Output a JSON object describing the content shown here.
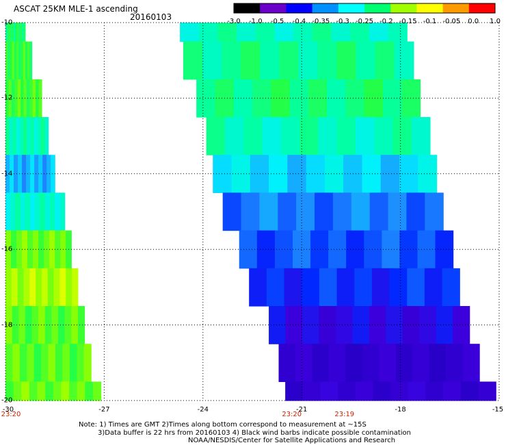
{
  "header": {
    "title": "ASCAT 25KM MLE-1 ascending",
    "date": "20160103"
  },
  "colorbar": {
    "labels": [
      "-3.0",
      "-1.0",
      "-0.5",
      "-0.4",
      "-0.35",
      "-0.3",
      "-0.25",
      "-0.2",
      "-0.15",
      "-0.1",
      "-0.05",
      "0.0",
      "1.0"
    ],
    "colors": [
      "#000000",
      "#6a00c8",
      "#0000ff",
      "#0090ff",
      "#00ffff",
      "#00ff70",
      "#a0ff00",
      "#ffff00",
      "#ff9900",
      "#ff0000"
    ]
  },
  "chart_data": {
    "type": "heatmap",
    "title": "ASCAT 25KM MLE-1 ascending",
    "xlabel": "",
    "ylabel": "",
    "xlim": [
      -30,
      -15
    ],
    "ylim": [
      -20,
      -10
    ],
    "x_ticks": [
      "-30",
      "-27",
      "-24",
      "-21",
      "-18",
      "-15"
    ],
    "y_ticks": [
      "-10",
      "-12",
      "-14",
      "-16",
      "-18",
      "-20"
    ],
    "grid": true,
    "colorbar_range": [
      -3.0,
      1.0
    ],
    "swaths": [
      {
        "name": "west",
        "time_label": "23:20",
        "time_lon": -30,
        "rows": [
          {
            "lat": -10.0,
            "lon_min": -30.0,
            "lon_max": -29.4,
            "value": -0.22
          },
          {
            "lat": -11.0,
            "lon_min": -30.0,
            "lon_max": -29.2,
            "value": -0.2
          },
          {
            "lat": -12.0,
            "lon_min": -30.0,
            "lon_max": -28.9,
            "value": -0.19
          },
          {
            "lat": -13.0,
            "lon_min": -30.0,
            "lon_max": -28.7,
            "value": -0.26
          },
          {
            "lat": -14.0,
            "lon_min": -30.0,
            "lon_max": -28.5,
            "value": -0.33
          },
          {
            "lat": -15.0,
            "lon_min": -30.0,
            "lon_max": -28.2,
            "value": -0.27
          },
          {
            "lat": -16.0,
            "lon_min": -30.0,
            "lon_max": -28.0,
            "value": -0.17
          },
          {
            "lat": -17.0,
            "lon_min": -30.0,
            "lon_max": -27.8,
            "value": -0.14
          },
          {
            "lat": -18.0,
            "lon_min": -30.0,
            "lon_max": -27.6,
            "value": -0.18
          },
          {
            "lat": -19.0,
            "lon_min": -30.0,
            "lon_max": -27.4,
            "value": -0.18
          },
          {
            "lat": -20.0,
            "lon_min": -30.0,
            "lon_max": -27.1,
            "value": -0.17
          }
        ]
      },
      {
        "name": "east",
        "time_label": "23:20",
        "time_lon": -21.3,
        "rows": [
          {
            "lat": -10.0,
            "lon_min": -24.7,
            "lon_max": -17.8,
            "value": -0.26
          },
          {
            "lat": -11.0,
            "lon_min": -24.6,
            "lon_max": -17.6,
            "value": -0.24
          },
          {
            "lat": -12.0,
            "lon_min": -24.2,
            "lon_max": -17.4,
            "value": -0.23
          },
          {
            "lat": -13.0,
            "lon_min": -23.9,
            "lon_max": -17.1,
            "value": -0.26
          },
          {
            "lat": -14.0,
            "lon_min": -23.7,
            "lon_max": -16.9,
            "value": -0.31
          },
          {
            "lat": -15.0,
            "lon_min": -23.4,
            "lon_max": -16.7,
            "value": -0.36
          },
          {
            "lat": -16.0,
            "lon_min": -22.9,
            "lon_max": -16.4,
            "value": -0.38
          },
          {
            "lat": -17.0,
            "lon_min": -22.6,
            "lon_max": -16.2,
            "value": -0.4
          },
          {
            "lat": -18.0,
            "lon_min": -22.0,
            "lon_max": -15.9,
            "value": -0.44
          },
          {
            "lat": -19.0,
            "lon_min": -21.7,
            "lon_max": -15.6,
            "value": -0.48
          },
          {
            "lat": -20.0,
            "lon_min": -21.5,
            "lon_max": -15.1,
            "value": -0.47
          }
        ]
      }
    ],
    "time_labels": [
      {
        "text": "23:20",
        "lon": -30
      },
      {
        "text": "23:20",
        "lon": -21.3
      },
      {
        "text": "23:19",
        "lon": -19.7
      }
    ]
  },
  "notes": {
    "line1": "Note: 1) Times are GMT 2)Times along bottom correspond to measurement at ~15S",
    "line2": "3)Data buffer is 22 hrs from 20160103 4) Black wind barbs indicate possible contamination",
    "line3": "NOAA/NESDIS/Center for Satellite Applications and Research"
  }
}
